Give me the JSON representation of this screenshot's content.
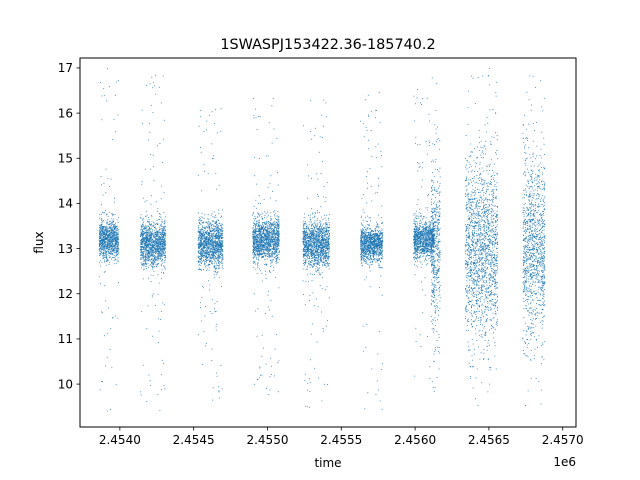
{
  "chart_data": {
    "type": "scatter",
    "title": "1SWASPJ153422.36-185740.2",
    "xlabel": "time",
    "ylabel": "flux",
    "x_offset_label": "1e6",
    "xlim": [
      2453730,
      2457090
    ],
    "ylim": [
      9.05,
      17.22
    ],
    "x_ticks": [
      2.454,
      2.4545,
      2.455,
      2.4555,
      2.456,
      2.4565,
      2.457
    ],
    "x_tick_labels": [
      "2.4540",
      "2.4545",
      "2.4550",
      "2.4555",
      "2.4560",
      "2.4565",
      "2.4570"
    ],
    "y_ticks": [
      10,
      11,
      12,
      13,
      14,
      15,
      16,
      17
    ],
    "y_tick_labels": [
      "10",
      "11",
      "12",
      "13",
      "14",
      "15",
      "16",
      "17"
    ],
    "grid": false,
    "marker_color": "#1f77b4",
    "series": [
      {
        "segments": [
          {
            "x_start": 2453860,
            "x_end": 2453990,
            "center": 13.2,
            "core_sd": 0.22,
            "out_low": 9.4,
            "out_high": 17.0
          },
          {
            "x_start": 2454140,
            "x_end": 2454310,
            "center": 13.1,
            "core_sd": 0.25,
            "out_low": 9.4,
            "out_high": 17.0
          },
          {
            "x_start": 2454530,
            "x_end": 2454700,
            "center": 13.1,
            "core_sd": 0.25,
            "out_low": 9.6,
            "out_high": 16.2
          },
          {
            "x_start": 2454900,
            "x_end": 2455080,
            "center": 13.2,
            "core_sd": 0.25,
            "out_low": 9.6,
            "out_high": 16.4
          },
          {
            "x_start": 2455240,
            "x_end": 2455420,
            "center": 13.1,
            "core_sd": 0.25,
            "out_low": 9.4,
            "out_high": 16.3
          },
          {
            "x_start": 2455630,
            "x_end": 2455780,
            "center": 13.1,
            "core_sd": 0.2,
            "out_low": 9.4,
            "out_high": 16.5
          },
          {
            "x_start": 2455990,
            "x_end": 2456130,
            "center": 13.2,
            "core_sd": 0.22,
            "out_low": 10.0,
            "out_high": 16.8
          },
          {
            "x_start": 2456110,
            "x_end": 2456170,
            "center": 13.0,
            "core_sd": 0.9,
            "out_low": 9.5,
            "out_high": 17.0
          },
          {
            "x_start": 2456340,
            "x_end": 2456560,
            "center": 13.0,
            "core_sd": 0.95,
            "out_low": 9.5,
            "out_high": 17.0
          },
          {
            "x_start": 2456730,
            "x_end": 2456880,
            "center": 13.0,
            "core_sd": 0.95,
            "out_low": 9.4,
            "out_high": 17.0
          }
        ]
      }
    ]
  }
}
